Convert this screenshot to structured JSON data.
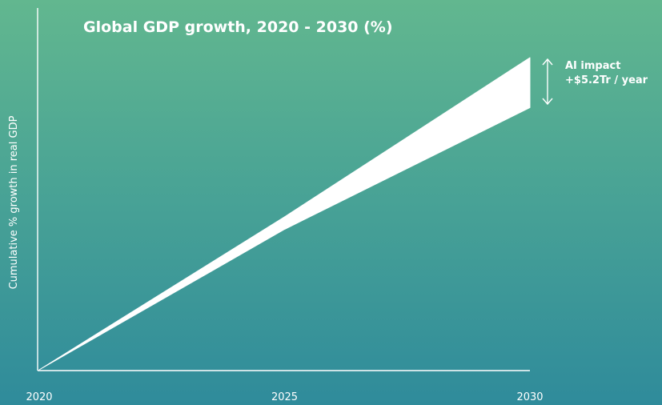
{
  "chart_data": {
    "type": "area",
    "title": "Global GDP growth, 2020 - 2030 (%)",
    "xlabel": "",
    "ylabel": "Cumulative % growth in real GDP",
    "x_ticks": [
      "2020",
      "2025",
      "2030"
    ],
    "xlim": [
      2020,
      2030
    ],
    "ylim": [
      0,
      100
    ],
    "grid": false,
    "legend": "none",
    "area_color": "#ffffff",
    "series": [
      {
        "x": [
          2020,
          2025,
          2030
        ],
        "values": [
          0,
          45,
          84
        ]
      },
      {
        "x": [
          2020,
          2025,
          2030
        ],
        "values": [
          0,
          49,
          100
        ]
      }
    ],
    "annotations": [
      {
        "text": "AI impact",
        "x": 2030
      },
      {
        "text": "+$5.2Tr / year",
        "x": 2030
      }
    ]
  }
}
